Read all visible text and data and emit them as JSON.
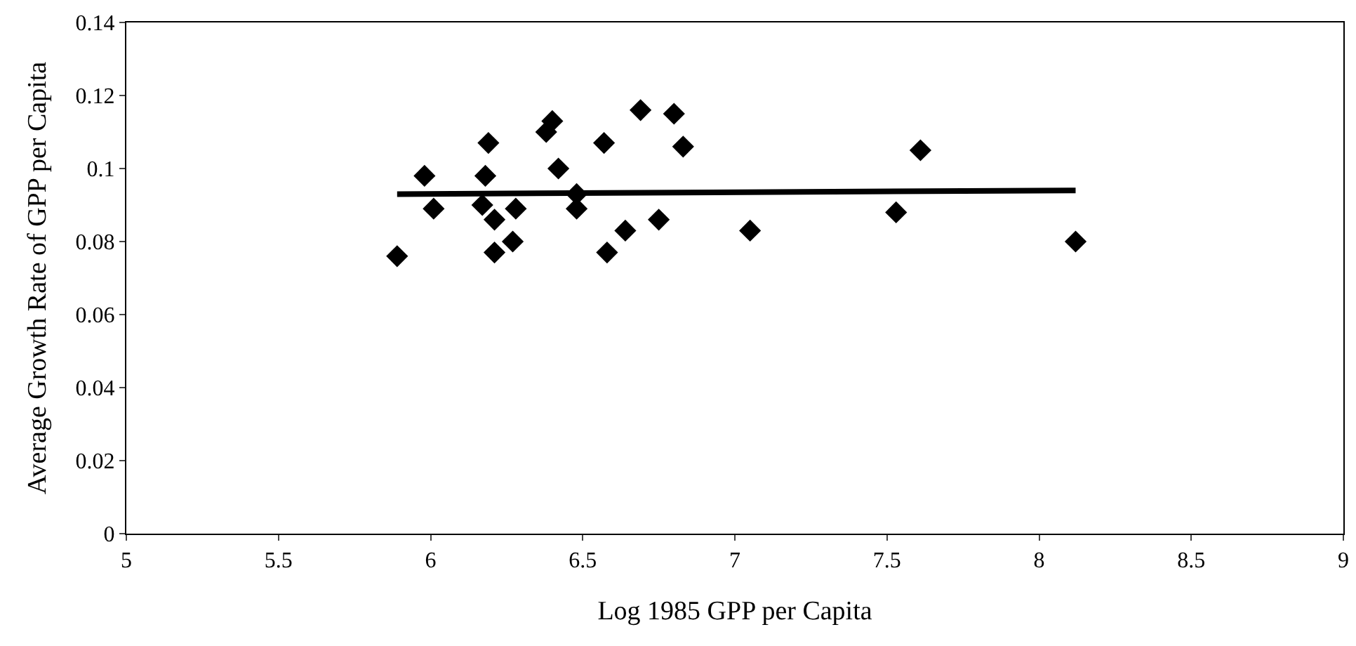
{
  "chart_data": {
    "type": "scatter",
    "xlabel": "Log 1985 GPP per Capita",
    "ylabel": "Average Growth Rate of GPP per Capita",
    "xlim": [
      5,
      9
    ],
    "xticks": [
      5,
      5.5,
      6,
      6.5,
      7,
      7.5,
      8,
      8.5,
      9
    ],
    "ylim": [
      0,
      0.14
    ],
    "yticks": [
      0,
      0.02,
      0.04,
      0.06,
      0.08,
      0.1,
      0.12,
      0.14
    ],
    "marker": "diamond",
    "series": [
      {
        "color": "#000000",
        "x": [
          5.89,
          5.98,
          6.01,
          6.17,
          6.18,
          6.19,
          6.21,
          6.21,
          6.27,
          6.28,
          6.38,
          6.4,
          6.42,
          6.48,
          6.48,
          6.57,
          6.58,
          6.64,
          6.69,
          6.75,
          6.8,
          6.83,
          7.05,
          7.53,
          7.61,
          8.12
        ],
        "values": [
          0.076,
          0.098,
          0.089,
          0.09,
          0.098,
          0.107,
          0.086,
          0.077,
          0.08,
          0.089,
          0.11,
          0.113,
          0.1,
          0.093,
          0.089,
          0.107,
          0.077,
          0.083,
          0.116,
          0.086,
          0.115,
          0.106,
          0.083,
          0.088,
          0.105,
          0.08
        ]
      },
      {
        "type": "line",
        "marker": "none",
        "color": "#000000",
        "x": [
          5.89,
          8.12
        ],
        "values": [
          0.093,
          0.094
        ]
      }
    ]
  }
}
